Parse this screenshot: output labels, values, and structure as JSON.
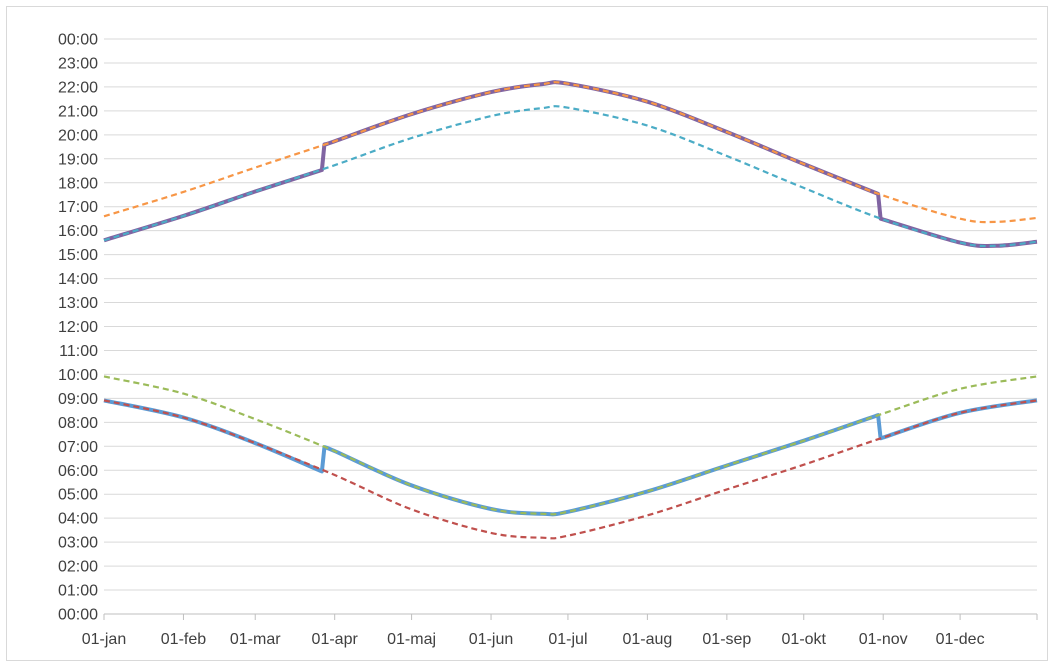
{
  "chart_data": {
    "type": "line",
    "title": "",
    "xlabel": "",
    "ylabel": "",
    "x_domain": [
      "2021-01-01",
      "2021-12-31"
    ],
    "x_ticks": [
      {
        "date": "2021-01-01",
        "label": "01-jan"
      },
      {
        "date": "2021-02-01",
        "label": "01-feb"
      },
      {
        "date": "2021-03-01",
        "label": "01-mar"
      },
      {
        "date": "2021-04-01",
        "label": "01-apr"
      },
      {
        "date": "2021-05-01",
        "label": "01-maj"
      },
      {
        "date": "2021-06-01",
        "label": "01-jun"
      },
      {
        "date": "2021-07-01",
        "label": "01-jul"
      },
      {
        "date": "2021-08-01",
        "label": "01-aug"
      },
      {
        "date": "2021-09-01",
        "label": "01-sep"
      },
      {
        "date": "2021-10-01",
        "label": "01-okt"
      },
      {
        "date": "2021-11-01",
        "label": "01-nov"
      },
      {
        "date": "2021-12-01",
        "label": "01-dec"
      }
    ],
    "y_ticks": [
      "00:00",
      "01:00",
      "02:00",
      "03:00",
      "04:00",
      "05:00",
      "06:00",
      "07:00",
      "08:00",
      "09:00",
      "10:00",
      "11:00",
      "12:00",
      "13:00",
      "14:00",
      "15:00",
      "16:00",
      "17:00",
      "18:00",
      "19:00",
      "20:00",
      "21:00",
      "22:00",
      "23:00",
      "00:00"
    ],
    "ylim_hours": [
      0,
      24
    ],
    "grid": "horizontal",
    "legend": "none",
    "series": [
      {
        "color": "#5b9bd5",
        "style": "solid",
        "width": 4,
        "points": [
          [
            "2021-01-01",
            "08:55"
          ],
          [
            "2021-02-01",
            "08:12"
          ],
          [
            "2021-03-01",
            "07:08"
          ],
          [
            "2021-03-27",
            "05:57"
          ],
          [
            "2021-03-28",
            "06:57"
          ],
          [
            "2021-04-01",
            "06:48"
          ],
          [
            "2021-05-01",
            "05:22"
          ],
          [
            "2021-06-01",
            "04:23"
          ],
          [
            "2021-06-21",
            "04:11"
          ],
          [
            "2021-07-01",
            "04:16"
          ],
          [
            "2021-08-01",
            "05:07"
          ],
          [
            "2021-09-01",
            "06:12"
          ],
          [
            "2021-10-01",
            "07:14"
          ],
          [
            "2021-10-30",
            "08:18"
          ],
          [
            "2021-10-31",
            "07:20"
          ],
          [
            "2021-11-01",
            "07:22"
          ],
          [
            "2021-12-01",
            "08:24"
          ],
          [
            "2021-12-31",
            "08:55"
          ]
        ]
      },
      {
        "color": "#c0504d",
        "style": "dashed",
        "width": 2.2,
        "points": [
          [
            "2021-01-01",
            "08:55"
          ],
          [
            "2021-02-01",
            "08:12"
          ],
          [
            "2021-03-01",
            "07:08"
          ],
          [
            "2021-04-01",
            "05:48"
          ],
          [
            "2021-05-01",
            "04:22"
          ],
          [
            "2021-06-01",
            "03:23"
          ],
          [
            "2021-06-21",
            "03:11"
          ],
          [
            "2021-07-01",
            "03:16"
          ],
          [
            "2021-08-01",
            "04:07"
          ],
          [
            "2021-09-01",
            "05:12"
          ],
          [
            "2021-10-01",
            "06:14"
          ],
          [
            "2021-11-01",
            "07:22"
          ],
          [
            "2021-12-01",
            "08:24"
          ],
          [
            "2021-12-31",
            "08:55"
          ]
        ]
      },
      {
        "color": "#9bbb59",
        "style": "dashed",
        "width": 2.2,
        "points": [
          [
            "2021-01-01",
            "09:55"
          ],
          [
            "2021-02-01",
            "09:12"
          ],
          [
            "2021-03-01",
            "08:08"
          ],
          [
            "2021-04-01",
            "06:48"
          ],
          [
            "2021-05-01",
            "05:22"
          ],
          [
            "2021-06-01",
            "04:23"
          ],
          [
            "2021-06-21",
            "04:11"
          ],
          [
            "2021-07-01",
            "04:16"
          ],
          [
            "2021-08-01",
            "05:07"
          ],
          [
            "2021-09-01",
            "06:12"
          ],
          [
            "2021-10-01",
            "07:14"
          ],
          [
            "2021-11-01",
            "08:22"
          ],
          [
            "2021-12-01",
            "09:24"
          ],
          [
            "2021-12-31",
            "09:55"
          ]
        ]
      },
      {
        "color": "#8064a2",
        "style": "solid",
        "width": 4,
        "points": [
          [
            "2021-01-01",
            "15:36"
          ],
          [
            "2021-02-01",
            "16:37"
          ],
          [
            "2021-03-01",
            "17:38"
          ],
          [
            "2021-03-27",
            "18:32"
          ],
          [
            "2021-03-28",
            "19:36"
          ],
          [
            "2021-04-01",
            "19:44"
          ],
          [
            "2021-05-01",
            "20:52"
          ],
          [
            "2021-06-01",
            "21:47"
          ],
          [
            "2021-06-21",
            "22:07"
          ],
          [
            "2021-07-01",
            "22:08"
          ],
          [
            "2021-08-01",
            "21:23"
          ],
          [
            "2021-09-01",
            "20:07"
          ],
          [
            "2021-10-01",
            "18:47"
          ],
          [
            "2021-10-30",
            "17:32"
          ],
          [
            "2021-10-31",
            "16:30"
          ],
          [
            "2021-11-01",
            "16:28"
          ],
          [
            "2021-12-01",
            "15:30"
          ],
          [
            "2021-12-15",
            "15:22"
          ],
          [
            "2021-12-31",
            "15:32"
          ]
        ]
      },
      {
        "color": "#f79646",
        "style": "dashed",
        "width": 2.2,
        "points": [
          [
            "2021-01-01",
            "16:36"
          ],
          [
            "2021-02-01",
            "17:37"
          ],
          [
            "2021-03-01",
            "18:38"
          ],
          [
            "2021-04-01",
            "19:44"
          ],
          [
            "2021-05-01",
            "20:52"
          ],
          [
            "2021-06-01",
            "21:47"
          ],
          [
            "2021-06-21",
            "22:07"
          ],
          [
            "2021-07-01",
            "22:08"
          ],
          [
            "2021-08-01",
            "21:23"
          ],
          [
            "2021-09-01",
            "20:07"
          ],
          [
            "2021-10-01",
            "18:47"
          ],
          [
            "2021-11-01",
            "17:28"
          ],
          [
            "2021-12-01",
            "16:30"
          ],
          [
            "2021-12-15",
            "16:22"
          ],
          [
            "2021-12-31",
            "16:32"
          ]
        ]
      },
      {
        "color": "#4bacc6",
        "style": "dashed",
        "width": 2.2,
        "points": [
          [
            "2021-01-01",
            "15:36"
          ],
          [
            "2021-02-01",
            "16:37"
          ],
          [
            "2021-03-01",
            "17:38"
          ],
          [
            "2021-04-01",
            "18:44"
          ],
          [
            "2021-05-01",
            "19:52"
          ],
          [
            "2021-06-01",
            "20:47"
          ],
          [
            "2021-06-21",
            "21:07"
          ],
          [
            "2021-07-01",
            "21:08"
          ],
          [
            "2021-08-01",
            "20:23"
          ],
          [
            "2021-09-01",
            "19:07"
          ],
          [
            "2021-10-01",
            "17:47"
          ],
          [
            "2021-11-01",
            "16:28"
          ],
          [
            "2021-12-01",
            "15:30"
          ],
          [
            "2021-12-15",
            "15:22"
          ],
          [
            "2021-12-31",
            "15:32"
          ]
        ]
      }
    ]
  }
}
